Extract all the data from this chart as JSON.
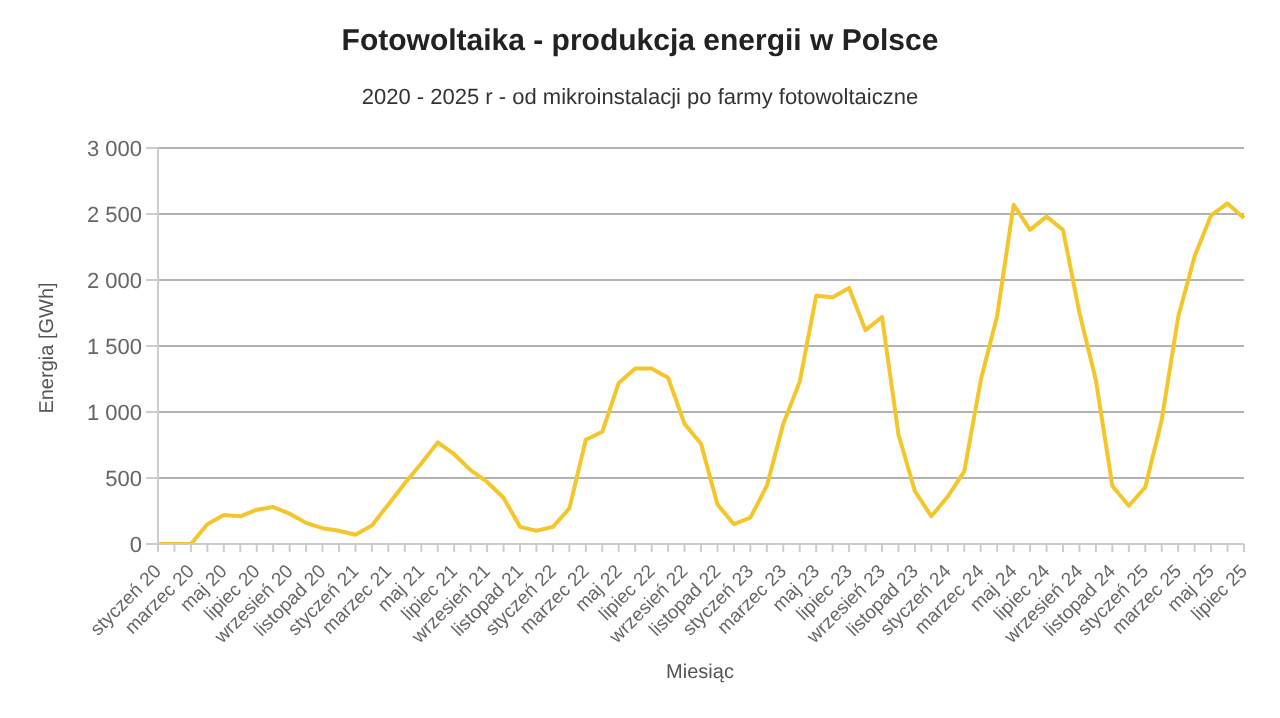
{
  "chart_data": {
    "type": "line",
    "title": "Fotowoltaika - produkcja energii w Polsce",
    "subtitle": "2020 - 2025 r - od mikroinstalacji po farmy fotowoltaiczne",
    "xlabel": "Miesiąc",
    "ylabel": "Energia [GWh]",
    "categories": [
      "styczeń 20",
      null,
      "marzec 20",
      null,
      "maj 20",
      null,
      "lipiec 20",
      null,
      "wrzesień 20",
      null,
      "listopad 20",
      null,
      "styczeń 21",
      null,
      "marzec 21",
      null,
      "maj 21",
      null,
      "lipiec 21",
      null,
      "wrzesień 21",
      null,
      "listopad 21",
      null,
      "styczeń 22",
      null,
      "marzec 22",
      null,
      "maj 22",
      null,
      "lipiec 22",
      null,
      "wrzesień 22",
      null,
      "listopad 22",
      null,
      "styczeń 23",
      null,
      "marzec 23",
      null,
      "maj 23",
      null,
      "lipiec 23",
      null,
      "wrzesień 23",
      null,
      "listopad 23",
      null,
      "styczeń 24",
      null,
      "marzec 24",
      null,
      "maj 24",
      null,
      "lipiec 24",
      null,
      "wrzesień 24",
      null,
      "listopad 24",
      null,
      "styczeń 25",
      null,
      "marzec 25",
      null,
      "maj 25",
      null,
      "lipiec 25"
    ],
    "series": [
      {
        "color": "#f5c62c",
        "values": [
          0,
          0,
          0,
          150,
          220,
          210,
          260,
          280,
          230,
          160,
          120,
          100,
          70,
          140,
          300,
          460,
          610,
          770,
          680,
          560,
          470,
          350,
          130,
          100,
          130,
          270,
          790,
          850,
          1220,
          1330,
          1330,
          1260,
          910,
          760,
          300,
          150,
          200,
          440,
          910,
          1230,
          1880,
          1870,
          1940,
          1620,
          1720,
          830,
          400,
          210,
          360,
          550,
          1240,
          1730,
          2570,
          2380,
          2480,
          2380,
          1750,
          1240,
          440,
          290,
          430,
          940,
          1720,
          2180,
          2490,
          2580,
          2470
        ]
      }
    ],
    "ylim": [
      0,
      3000
    ],
    "yticks": [
      0,
      500,
      {
        "value": 1000,
        "label": "1 000"
      },
      {
        "value": 1500,
        "label": "1 500"
      },
      {
        "value": 2000,
        "label": "2 000"
      },
      {
        "value": 2500,
        "label": "2 500"
      },
      {
        "value": 3000,
        "label": "3 000"
      }
    ],
    "grid": "y",
    "legend": false,
    "marker": "none",
    "line_style": "solid"
  }
}
